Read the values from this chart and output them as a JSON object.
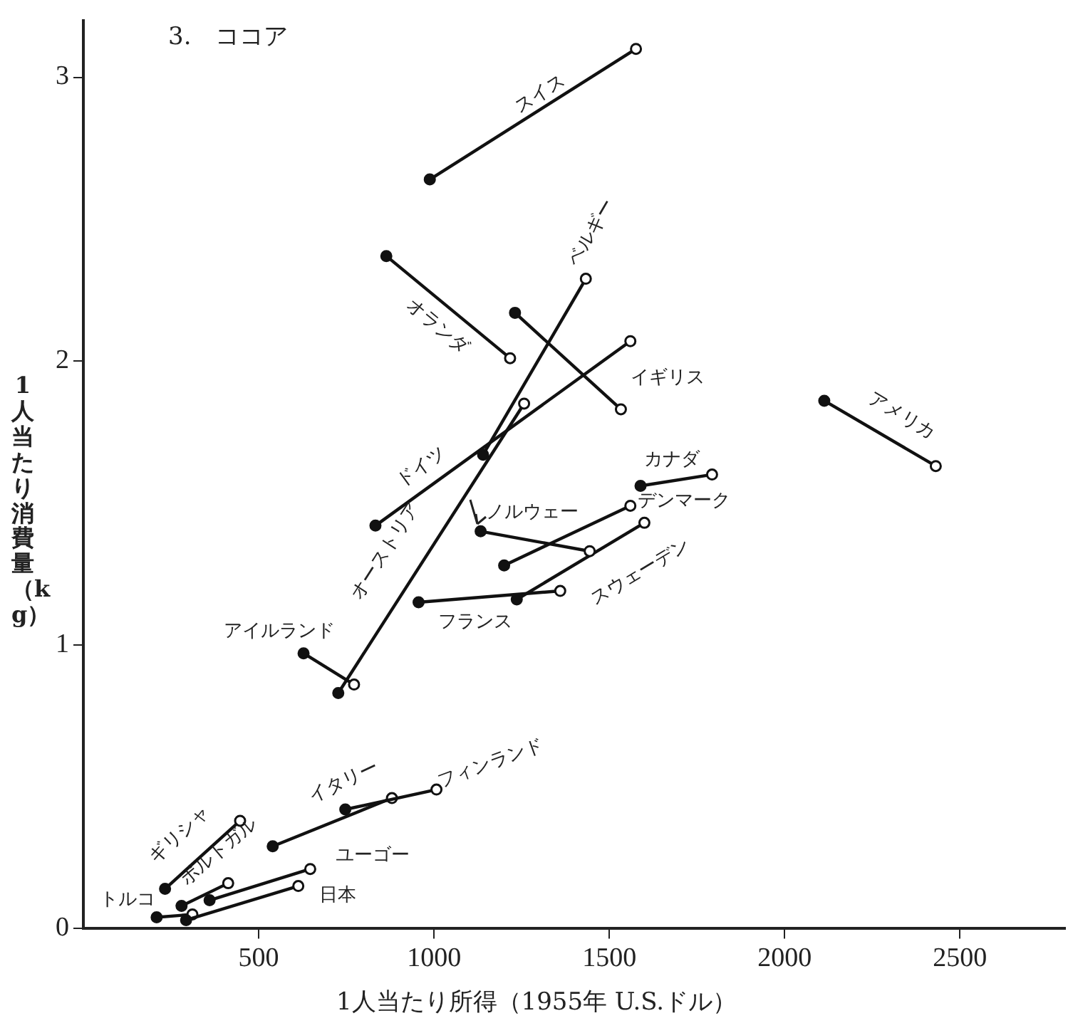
{
  "chart_data": {
    "type": "line",
    "title": "3.　ココア",
    "xlabel": "1人当たり所得（1955年 U.S.ドル）",
    "ylabel": "1人当たり消費量（kg）",
    "xlim": [
      0,
      2800
    ],
    "xticks": [
      500,
      1000,
      1500,
      2000,
      2500
    ],
    "ylim": [
      0,
      3.2
    ],
    "yticks": [
      0,
      1,
      2,
      3
    ],
    "grid": false,
    "legend": false,
    "marker": "circle",
    "line_style": "solid",
    "series": [
      {
        "name": "スイス",
        "color": "#111111",
        "x": [
          988,
          1576
        ],
        "values": [
          2.64,
          3.1
        ]
      },
      {
        "name": "オランダ",
        "color": "#111111",
        "x": [
          864,
          1217
        ],
        "values": [
          2.37,
          2.01
        ]
      },
      {
        "name": "ベルギー",
        "color": "#111111",
        "x": [
          1140,
          1433
        ],
        "values": [
          1.67,
          2.29
        ]
      },
      {
        "name": "イギリス",
        "color": "#111111",
        "x": [
          1231,
          1533
        ],
        "values": [
          2.17,
          1.83
        ]
      },
      {
        "name": "ドイツ",
        "color": "#111111",
        "x": [
          833,
          1560
        ],
        "values": [
          1.42,
          2.07
        ]
      },
      {
        "name": "オーストリア",
        "color": "#111111",
        "x": [
          727,
          1257
        ],
        "values": [
          0.83,
          1.85
        ]
      },
      {
        "name": "アメリカ",
        "color": "#111111",
        "x": [
          2113,
          2431
        ],
        "values": [
          1.86,
          1.63
        ]
      },
      {
        "name": "カナダ",
        "color": "#111111",
        "x": [
          1589,
          1793
        ],
        "values": [
          1.56,
          1.6
        ]
      },
      {
        "name": "ノルウェー",
        "color": "#111111",
        "x": [
          1133,
          1444
        ],
        "values": [
          1.4,
          1.33
        ]
      },
      {
        "name": "デンマーク",
        "color": "#111111",
        "x": [
          1200,
          1560
        ],
        "values": [
          1.28,
          1.49
        ]
      },
      {
        "name": "スウェーデン",
        "color": "#111111",
        "x": [
          1236,
          1600
        ],
        "values": [
          1.16,
          1.43
        ]
      },
      {
        "name": "フランス",
        "color": "#111111",
        "x": [
          956,
          1360
        ],
        "values": [
          1.15,
          1.19
        ]
      },
      {
        "name": "アイルランド",
        "color": "#111111",
        "x": [
          628,
          772
        ],
        "values": [
          0.97,
          0.86
        ]
      },
      {
        "name": "フィンランド",
        "color": "#111111",
        "x": [
          747,
          1007
        ],
        "values": [
          0.42,
          0.49
        ]
      },
      {
        "name": "イタリー",
        "color": "#111111",
        "x": [
          540,
          880
        ],
        "values": [
          0.29,
          0.46
        ]
      },
      {
        "name": "ギリシャ",
        "color": "#111111",
        "x": [
          233,
          447
        ],
        "values": [
          0.14,
          0.38
        ]
      },
      {
        "name": "ポルトガル",
        "color": "#111111",
        "x": [
          280,
          413
        ],
        "values": [
          0.08,
          0.16
        ]
      },
      {
        "name": "ユーゴー",
        "color": "#111111",
        "x": [
          360,
          647
        ],
        "values": [
          0.1,
          0.21
        ]
      },
      {
        "name": "日本",
        "color": "#111111",
        "x": [
          293,
          613
        ],
        "values": [
          0.03,
          0.15
        ]
      },
      {
        "name": "トルコ",
        "color": "#111111",
        "x": [
          209,
          311
        ],
        "values": [
          0.04,
          0.05
        ]
      }
    ]
  }
}
